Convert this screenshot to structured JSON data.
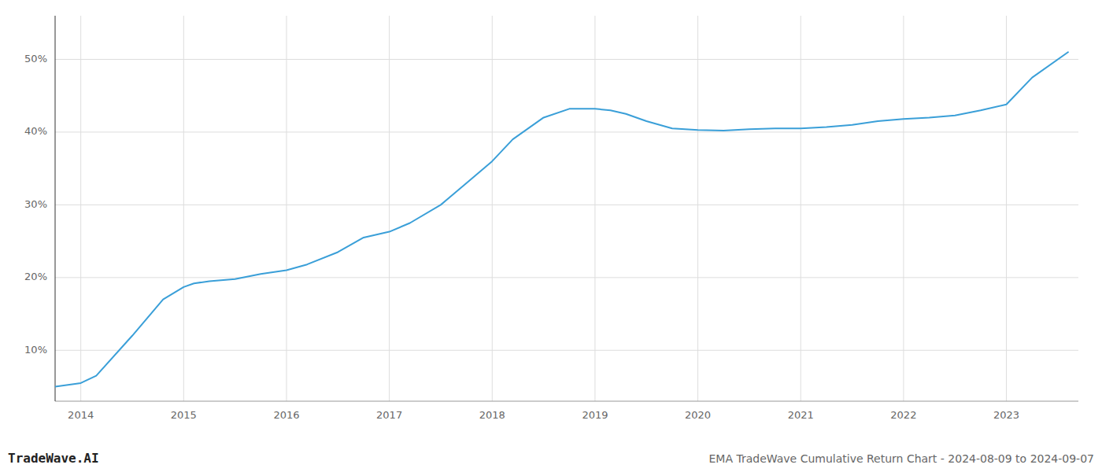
{
  "chart_data": {
    "type": "line",
    "title": "EMA TradeWave Cumulative Return Chart - 2024-08-09 to 2024-09-07",
    "annotations": [
      "TradeWave.AI"
    ],
    "x": [
      2013.75,
      2014.0,
      2014.15,
      2014.5,
      2014.8,
      2015.0,
      2015.1,
      2015.25,
      2015.5,
      2015.75,
      2016.0,
      2016.2,
      2016.5,
      2016.75,
      2017.0,
      2017.2,
      2017.5,
      2017.75,
      2018.0,
      2018.2,
      2018.5,
      2018.75,
      2019.0,
      2019.15,
      2019.3,
      2019.5,
      2019.75,
      2020.0,
      2020.25,
      2020.5,
      2020.75,
      2021.0,
      2021.25,
      2021.5,
      2021.75,
      2022.0,
      2022.25,
      2022.5,
      2022.75,
      2023.0,
      2023.25,
      2023.6
    ],
    "values": [
      5.0,
      5.5,
      6.5,
      12.0,
      17.0,
      18.7,
      19.2,
      19.5,
      19.8,
      20.5,
      21.0,
      21.8,
      23.5,
      25.5,
      26.3,
      27.5,
      30.0,
      33.0,
      36.0,
      39.0,
      42.0,
      43.2,
      43.2,
      43.0,
      42.5,
      41.5,
      40.5,
      40.3,
      40.2,
      40.4,
      40.5,
      40.5,
      40.7,
      41.0,
      41.5,
      41.8,
      42.0,
      42.3,
      43.0,
      43.8,
      47.5,
      51.0
    ],
    "color": "#3a9fd8",
    "xlim": [
      2013.75,
      2023.7
    ],
    "ylim": [
      3,
      56
    ],
    "xticks": [
      2014,
      2015,
      2016,
      2017,
      2018,
      2019,
      2020,
      2021,
      2022,
      2023
    ],
    "yticks": [
      {
        "value": 10,
        "label": "10%"
      },
      {
        "value": 20,
        "label": "20%"
      },
      {
        "value": 30,
        "label": "30%"
      },
      {
        "value": 40,
        "label": "40%"
      },
      {
        "value": 50,
        "label": "50%"
      }
    ],
    "grid": true
  }
}
